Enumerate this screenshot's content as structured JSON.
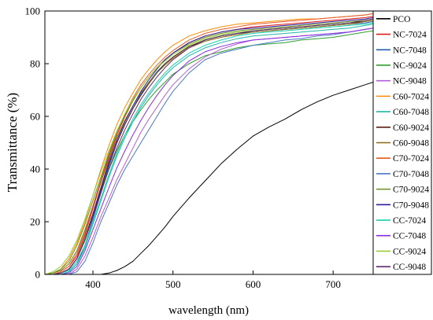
{
  "chart_data": {
    "type": "line",
    "xlabel": "wavelength (nm)",
    "ylabel": "Transmittance (%)",
    "xlim": [
      340,
      750
    ],
    "ylim": [
      0,
      100
    ],
    "xticks": [
      400,
      500,
      600,
      700
    ],
    "yticks": [
      0,
      20,
      40,
      60,
      80,
      100
    ],
    "grid": false,
    "legend_position": "right",
    "x": [
      340,
      350,
      360,
      370,
      380,
      390,
      400,
      410,
      420,
      430,
      440,
      450,
      460,
      470,
      480,
      490,
      500,
      520,
      540,
      560,
      580,
      600,
      620,
      640,
      660,
      680,
      700,
      720,
      740,
      750
    ],
    "series": [
      {
        "name": "PCO",
        "color": "#000000",
        "values": [
          0,
          0,
          0,
          0,
          0,
          0,
          0,
          0,
          0.5,
          1.5,
          3,
          5,
          8,
          11,
          14.5,
          18,
          22,
          29,
          35.5,
          42,
          47.5,
          52.5,
          56,
          59,
          62.5,
          65.5,
          68,
          70,
          72,
          73
        ]
      },
      {
        "name": "NC-7024",
        "color": "#e41a1c",
        "values": [
          0,
          0,
          1,
          3,
          7,
          15,
          25,
          35,
          45,
          53,
          60,
          66,
          71,
          75,
          78.5,
          81.5,
          84,
          88,
          90.5,
          92,
          93,
          94,
          94.5,
          95,
          95.5,
          96,
          96.5,
          97,
          97.5,
          98
        ]
      },
      {
        "name": "NC-7048",
        "color": "#1f5fa8",
        "values": [
          0,
          0,
          0,
          1,
          4,
          11,
          21,
          31,
          41,
          50,
          57,
          63,
          68.5,
          73,
          77,
          80,
          82.5,
          86.5,
          89,
          90.5,
          91.5,
          92,
          92.5,
          93,
          93.5,
          94,
          94.5,
          95,
          95.5,
          96
        ]
      },
      {
        "name": "NC-9024",
        "color": "#2ca02c",
        "values": [
          0,
          0,
          0.5,
          2,
          6,
          14,
          23,
          32,
          40,
          47,
          53,
          58,
          62.5,
          66.5,
          70,
          73,
          76,
          80,
          83,
          84.5,
          86,
          87,
          87.5,
          88,
          89,
          89.5,
          90,
          91,
          92,
          92.5
        ]
      },
      {
        "name": "NC-9048",
        "color": "#b15fd0",
        "values": [
          0,
          0,
          0,
          0,
          2,
          7,
          14,
          22,
          29,
          36,
          42,
          48,
          54,
          59,
          63.5,
          68,
          72,
          78,
          82.5,
          85.5,
          87.5,
          89,
          89.5,
          90,
          90.5,
          91,
          91.5,
          92,
          93,
          93.5
        ]
      },
      {
        "name": "C60-7024",
        "color": "#ff8c00",
        "values": [
          0,
          0.5,
          2,
          6,
          12,
          20,
          30,
          40,
          49,
          57,
          63.5,
          69,
          74,
          78,
          81.5,
          84.5,
          87,
          90.5,
          92.5,
          94,
          95,
          95.5,
          96,
          96.5,
          97,
          97,
          97.5,
          98,
          98.5,
          99
        ]
      },
      {
        "name": "C60-7048",
        "color": "#1fb5a5",
        "values": [
          0,
          0,
          0,
          1,
          4,
          10,
          19,
          28,
          37,
          45,
          52,
          58,
          63.5,
          68,
          72,
          75.5,
          78.5,
          83,
          86,
          88,
          89.5,
          90.5,
          91,
          91.5,
          92,
          92.5,
          93,
          93.5,
          94.5,
          95
        ]
      },
      {
        "name": "C60-9024",
        "color": "#5a1e10",
        "values": [
          0,
          0,
          0.5,
          2,
          6,
          13,
          22,
          32,
          42,
          50,
          57,
          63,
          68,
          72.5,
          76.5,
          80,
          82.5,
          86.5,
          89,
          90.5,
          91.5,
          92.5,
          93,
          93.5,
          94,
          94.5,
          95,
          95.5,
          96,
          96.5
        ]
      },
      {
        "name": "C60-9048",
        "color": "#8b6914",
        "values": [
          0,
          0.5,
          1.5,
          4,
          9,
          17,
          26,
          35,
          44,
          52,
          58.5,
          64,
          69,
          73,
          76.5,
          79.5,
          82,
          86,
          88.5,
          90,
          91,
          92,
          92.5,
          93,
          93.5,
          94,
          94.5,
          95,
          96,
          96.5
        ]
      },
      {
        "name": "C70-7024",
        "color": "#e35b2a",
        "values": [
          0,
          0,
          1,
          3,
          8,
          16,
          26,
          36,
          46,
          54,
          61,
          67,
          72,
          76,
          79.5,
          82.5,
          85,
          89,
          91.5,
          93,
          94,
          95,
          95.5,
          96,
          96.5,
          97,
          97.5,
          98,
          98.5,
          99
        ]
      },
      {
        "name": "C70-7048",
        "color": "#4a77c4",
        "values": [
          0,
          0,
          0,
          0,
          1,
          5,
          12,
          20,
          27,
          34,
          40,
          45,
          50,
          55,
          60,
          65,
          69.5,
          76.5,
          81.5,
          84,
          85.5,
          87,
          88,
          89,
          89.5,
          90.5,
          91,
          92,
          93,
          93.5
        ]
      },
      {
        "name": "C70-9024",
        "color": "#6b8e23",
        "values": [
          0,
          0.5,
          2,
          5,
          11,
          19,
          28,
          37,
          46,
          54,
          60.5,
          66,
          71,
          75,
          78.5,
          81.5,
          84,
          87.5,
          90,
          91.5,
          92.5,
          93,
          93.5,
          94,
          94.5,
          95,
          95.5,
          96,
          96.5,
          97
        ]
      },
      {
        "name": "C70-9048",
        "color": "#2a1f9c",
        "values": [
          0,
          0,
          0.5,
          2,
          6,
          13,
          23,
          33,
          43,
          51,
          58,
          64,
          69.5,
          74,
          78,
          81.5,
          84,
          88,
          90.5,
          92,
          93,
          93.5,
          94,
          94.5,
          95,
          95.5,
          96,
          96.5,
          97,
          97.5
        ]
      },
      {
        "name": "CC-7024",
        "color": "#17d0b0",
        "values": [
          0,
          0,
          0.5,
          1.5,
          5,
          11,
          20,
          29,
          38,
          46,
          53,
          59,
          64.5,
          69,
          73,
          76.5,
          79.5,
          84,
          87,
          89,
          90.5,
          91.5,
          92,
          92.5,
          93,
          93.5,
          94,
          94.5,
          95,
          95.5
        ]
      },
      {
        "name": "CC-7048",
        "color": "#8a2be2",
        "values": [
          0,
          0,
          0,
          0.5,
          3,
          9,
          17,
          25,
          33,
          40.5,
          47,
          53,
          58.5,
          63.5,
          68,
          72,
          75.5,
          81,
          84.5,
          86.5,
          88,
          89,
          89.5,
          90,
          90.5,
          91,
          91.5,
          92,
          93,
          93.5
        ]
      },
      {
        "name": "CC-9024",
        "color": "#9acd32",
        "values": [
          0,
          1,
          3,
          7,
          13,
          21,
          30,
          39,
          47,
          54.5,
          61,
          66.5,
          71,
          75,
          78.5,
          81,
          83.5,
          87,
          89.5,
          91,
          92,
          92.5,
          93,
          93.5,
          94,
          94.5,
          95,
          95.5,
          96.5,
          97
        ]
      },
      {
        "name": "CC-9048",
        "color": "#5b2a6e",
        "values": [
          0,
          0,
          0.5,
          2,
          6,
          13,
          22,
          31,
          40,
          48,
          55,
          61,
          66.5,
          71,
          75,
          78.5,
          81.5,
          86,
          89,
          90.5,
          91.5,
          92.5,
          93,
          93.5,
          94,
          94.5,
          95,
          95.5,
          96.5,
          97
        ]
      }
    ]
  }
}
